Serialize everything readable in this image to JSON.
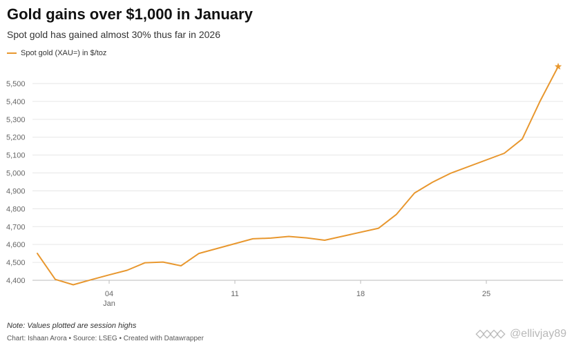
{
  "header": {
    "title": "Gold gains over $1,000 in January",
    "subtitle": "Spot gold has gained almost 30% thus far in 2026"
  },
  "legend": {
    "label": "Spot gold (XAU=) in $/toz"
  },
  "footer": {
    "note": "Note: Values plotted are session highs",
    "credit": "Chart: Ishaan Arora • Source: LSEG • Created with Datawrapper"
  },
  "watermark": {
    "text": "@ellivjay89"
  },
  "colors": {
    "line": "#e8972e",
    "grid": "#e6e6e6",
    "axis_text": "#666666"
  },
  "chart_data": {
    "type": "line",
    "title": "Gold gains over $1,000 in January",
    "subtitle": "Spot gold has gained almost 30% thus far in 2026",
    "xlabel": "",
    "ylabel": "",
    "ylim": [
      4400,
      5500
    ],
    "xlim": [
      "2025-12-31",
      "2026-01-29"
    ],
    "yticks": [
      4400,
      4500,
      4600,
      4700,
      4800,
      4900,
      5000,
      5100,
      5200,
      5300,
      5400,
      5500
    ],
    "ytick_labels": [
      "4,400",
      "4,500",
      "4,600",
      "4,700",
      "4,800",
      "4,900",
      "5,000",
      "5,100",
      "5,200",
      "5,300",
      "5,400",
      "5,500"
    ],
    "xticks": [
      "2026-01-04",
      "2026-01-11",
      "2026-01-18",
      "2026-01-25"
    ],
    "xtick_labels": [
      "04",
      "11",
      "18",
      "25"
    ],
    "xtick_sublabel": "Jan",
    "grid": true,
    "legend_position": "top-left",
    "end_marker": "star",
    "series": [
      {
        "name": "Spot gold (XAU=) in $/toz",
        "x": [
          "2025-12-31",
          "2026-01-01",
          "2026-01-02",
          "2026-01-03",
          "2026-01-04",
          "2026-01-05",
          "2026-01-06",
          "2026-01-07",
          "2026-01-08",
          "2026-01-09",
          "2026-01-12",
          "2026-01-13",
          "2026-01-14",
          "2026-01-15",
          "2026-01-16",
          "2026-01-19",
          "2026-01-20",
          "2026-01-21",
          "2026-01-22",
          "2026-01-23",
          "2026-01-26",
          "2026-01-27",
          "2026-01-28",
          "2026-01-29"
        ],
        "values": [
          4550,
          4405,
          4375,
          4403,
          4430,
          4456,
          4498,
          4502,
          4481,
          4550,
          4632,
          4636,
          4645,
          4637,
          4624,
          4691,
          4769,
          4888,
          4948,
          4998,
          5110,
          5190,
          5403,
          5595
        ]
      }
    ]
  }
}
